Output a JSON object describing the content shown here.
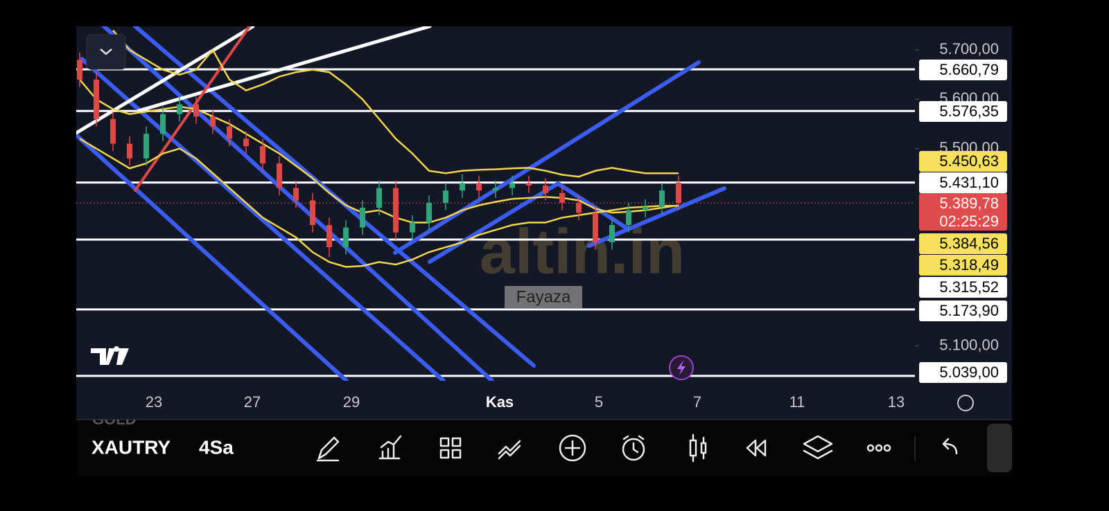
{
  "symbol": "XAUTRY",
  "timeframe": "4Sa",
  "exchange": "GOLD",
  "watermark": "altin.in",
  "author": "Fayaza",
  "chart_data": {
    "type": "candlestick",
    "ylim": [
      5029,
      5748
    ],
    "yticks": [
      {
        "value": 5700,
        "label": "5.700,00"
      },
      {
        "value": 5600,
        "label": "5.600,00"
      },
      {
        "value": 5500,
        "label": "5.500,00"
      },
      {
        "value": 5100,
        "label": "5.100,00"
      }
    ],
    "xtick_labels": [
      "23",
      "27",
      "29",
      "Kas",
      "5",
      "7",
      "11",
      "13"
    ],
    "open": [
      5680,
      5640,
      5560,
      5510,
      5480,
      5530,
      5570,
      5590,
      5565,
      5545,
      5520,
      5505,
      5470,
      5420,
      5395,
      5345,
      5300,
      5340,
      5380,
      5420,
      5330,
      5350,
      5390,
      5415,
      5430,
      5415,
      5420,
      5430,
      5425,
      5410,
      5390,
      5370,
      5310,
      5345,
      5375,
      5382,
      5431.1
    ],
    "high": [
      5695,
      5655,
      5575,
      5525,
      5545,
      5585,
      5605,
      5605,
      5580,
      5560,
      5535,
      5520,
      5485,
      5435,
      5410,
      5360,
      5355,
      5395,
      5435,
      5435,
      5365,
      5405,
      5430,
      5448,
      5445,
      5435,
      5445,
      5445,
      5440,
      5425,
      5405,
      5385,
      5360,
      5390,
      5397,
      5430,
      5445
    ],
    "low": [
      5625,
      5545,
      5495,
      5465,
      5465,
      5515,
      5555,
      5550,
      5530,
      5505,
      5490,
      5455,
      5405,
      5380,
      5330,
      5280,
      5285,
      5325,
      5365,
      5315,
      5315,
      5335,
      5375,
      5400,
      5400,
      5400,
      5405,
      5410,
      5395,
      5375,
      5355,
      5295,
      5295,
      5330,
      5360,
      5367,
      5375
    ],
    "close": [
      5640,
      5560,
      5510,
      5480,
      5530,
      5570,
      5590,
      5565,
      5545,
      5520,
      5505,
      5470,
      5420,
      5395,
      5345,
      5300,
      5340,
      5380,
      5420,
      5330,
      5350,
      5390,
      5415,
      5430,
      5415,
      5420,
      5430,
      5425,
      5410,
      5390,
      5370,
      5310,
      5345,
      5375,
      5382,
      5415,
      5389.78
    ],
    "up_color": "#2fa57c",
    "down_color": "#e04848",
    "bands": [
      {
        "color": "#f3d64c",
        "values": [
          null,
          null,
          5740,
          5700,
          5680,
          5660,
          5650,
          5660,
          5700,
          5640,
          5618,
          5630,
          5646,
          5655,
          5660,
          5655,
          5630,
          5600,
          5560,
          5520,
          5490,
          5455,
          5450,
          5455,
          5457,
          5458,
          5460,
          5461,
          5455,
          5447,
          5443,
          5455,
          5461,
          5455,
          5450,
          5450,
          5450
        ]
      },
      {
        "color": "#f3d64c",
        "values": [
          5640,
          5600,
          5580,
          5570,
          5575,
          5580,
          5585,
          5580,
          5565,
          5550,
          5530,
          5510,
          5490,
          5465,
          5440,
          5410,
          5385,
          5370,
          5375,
          5360,
          5350,
          5350,
          5360,
          5375,
          5385,
          5392,
          5398,
          5400,
          5402,
          5400,
          5395,
          5378,
          5370,
          5372,
          5375,
          5380,
          5385
        ]
      },
      {
        "color": "#f3d64c",
        "values": [
          5520,
          5500,
          5480,
          5460,
          5470,
          5490,
          5500,
          5480,
          5450,
          5420,
          5390,
          5360,
          5340,
          5320,
          5290,
          5270,
          5260,
          5262,
          5270,
          5265,
          5275,
          5290,
          5300,
          5310,
          5325,
          5335,
          5345,
          5350,
          5350,
          5360,
          5365,
          5370,
          5375,
          5380,
          5382,
          5384,
          5384
        ]
      }
    ],
    "price_labels": [
      {
        "value": 5660.79,
        "label": "5.660,79",
        "style": "white"
      },
      {
        "value": 5576.35,
        "label": "5.576,35",
        "style": "white"
      },
      {
        "value": 5450.63,
        "label": "5.450,63",
        "style": "yellow"
      },
      {
        "value": 5431.1,
        "label": "5.431,10",
        "style": "white"
      },
      {
        "value": 5389.78,
        "label": "5.389,78",
        "style": "red",
        "countdown": "02:25:29"
      },
      {
        "value": 5384.56,
        "label": "5.384,56",
        "style": "yellow"
      },
      {
        "value": 5318.49,
        "label": "5.318,49",
        "style": "yellow"
      },
      {
        "value": 5315.52,
        "label": "5.315,52",
        "style": "white"
      },
      {
        "value": 5173.9,
        "label": "5.173,90",
        "style": "white"
      },
      {
        "value": 5039.0,
        "label": "5.039,00",
        "style": "white"
      }
    ]
  }
}
